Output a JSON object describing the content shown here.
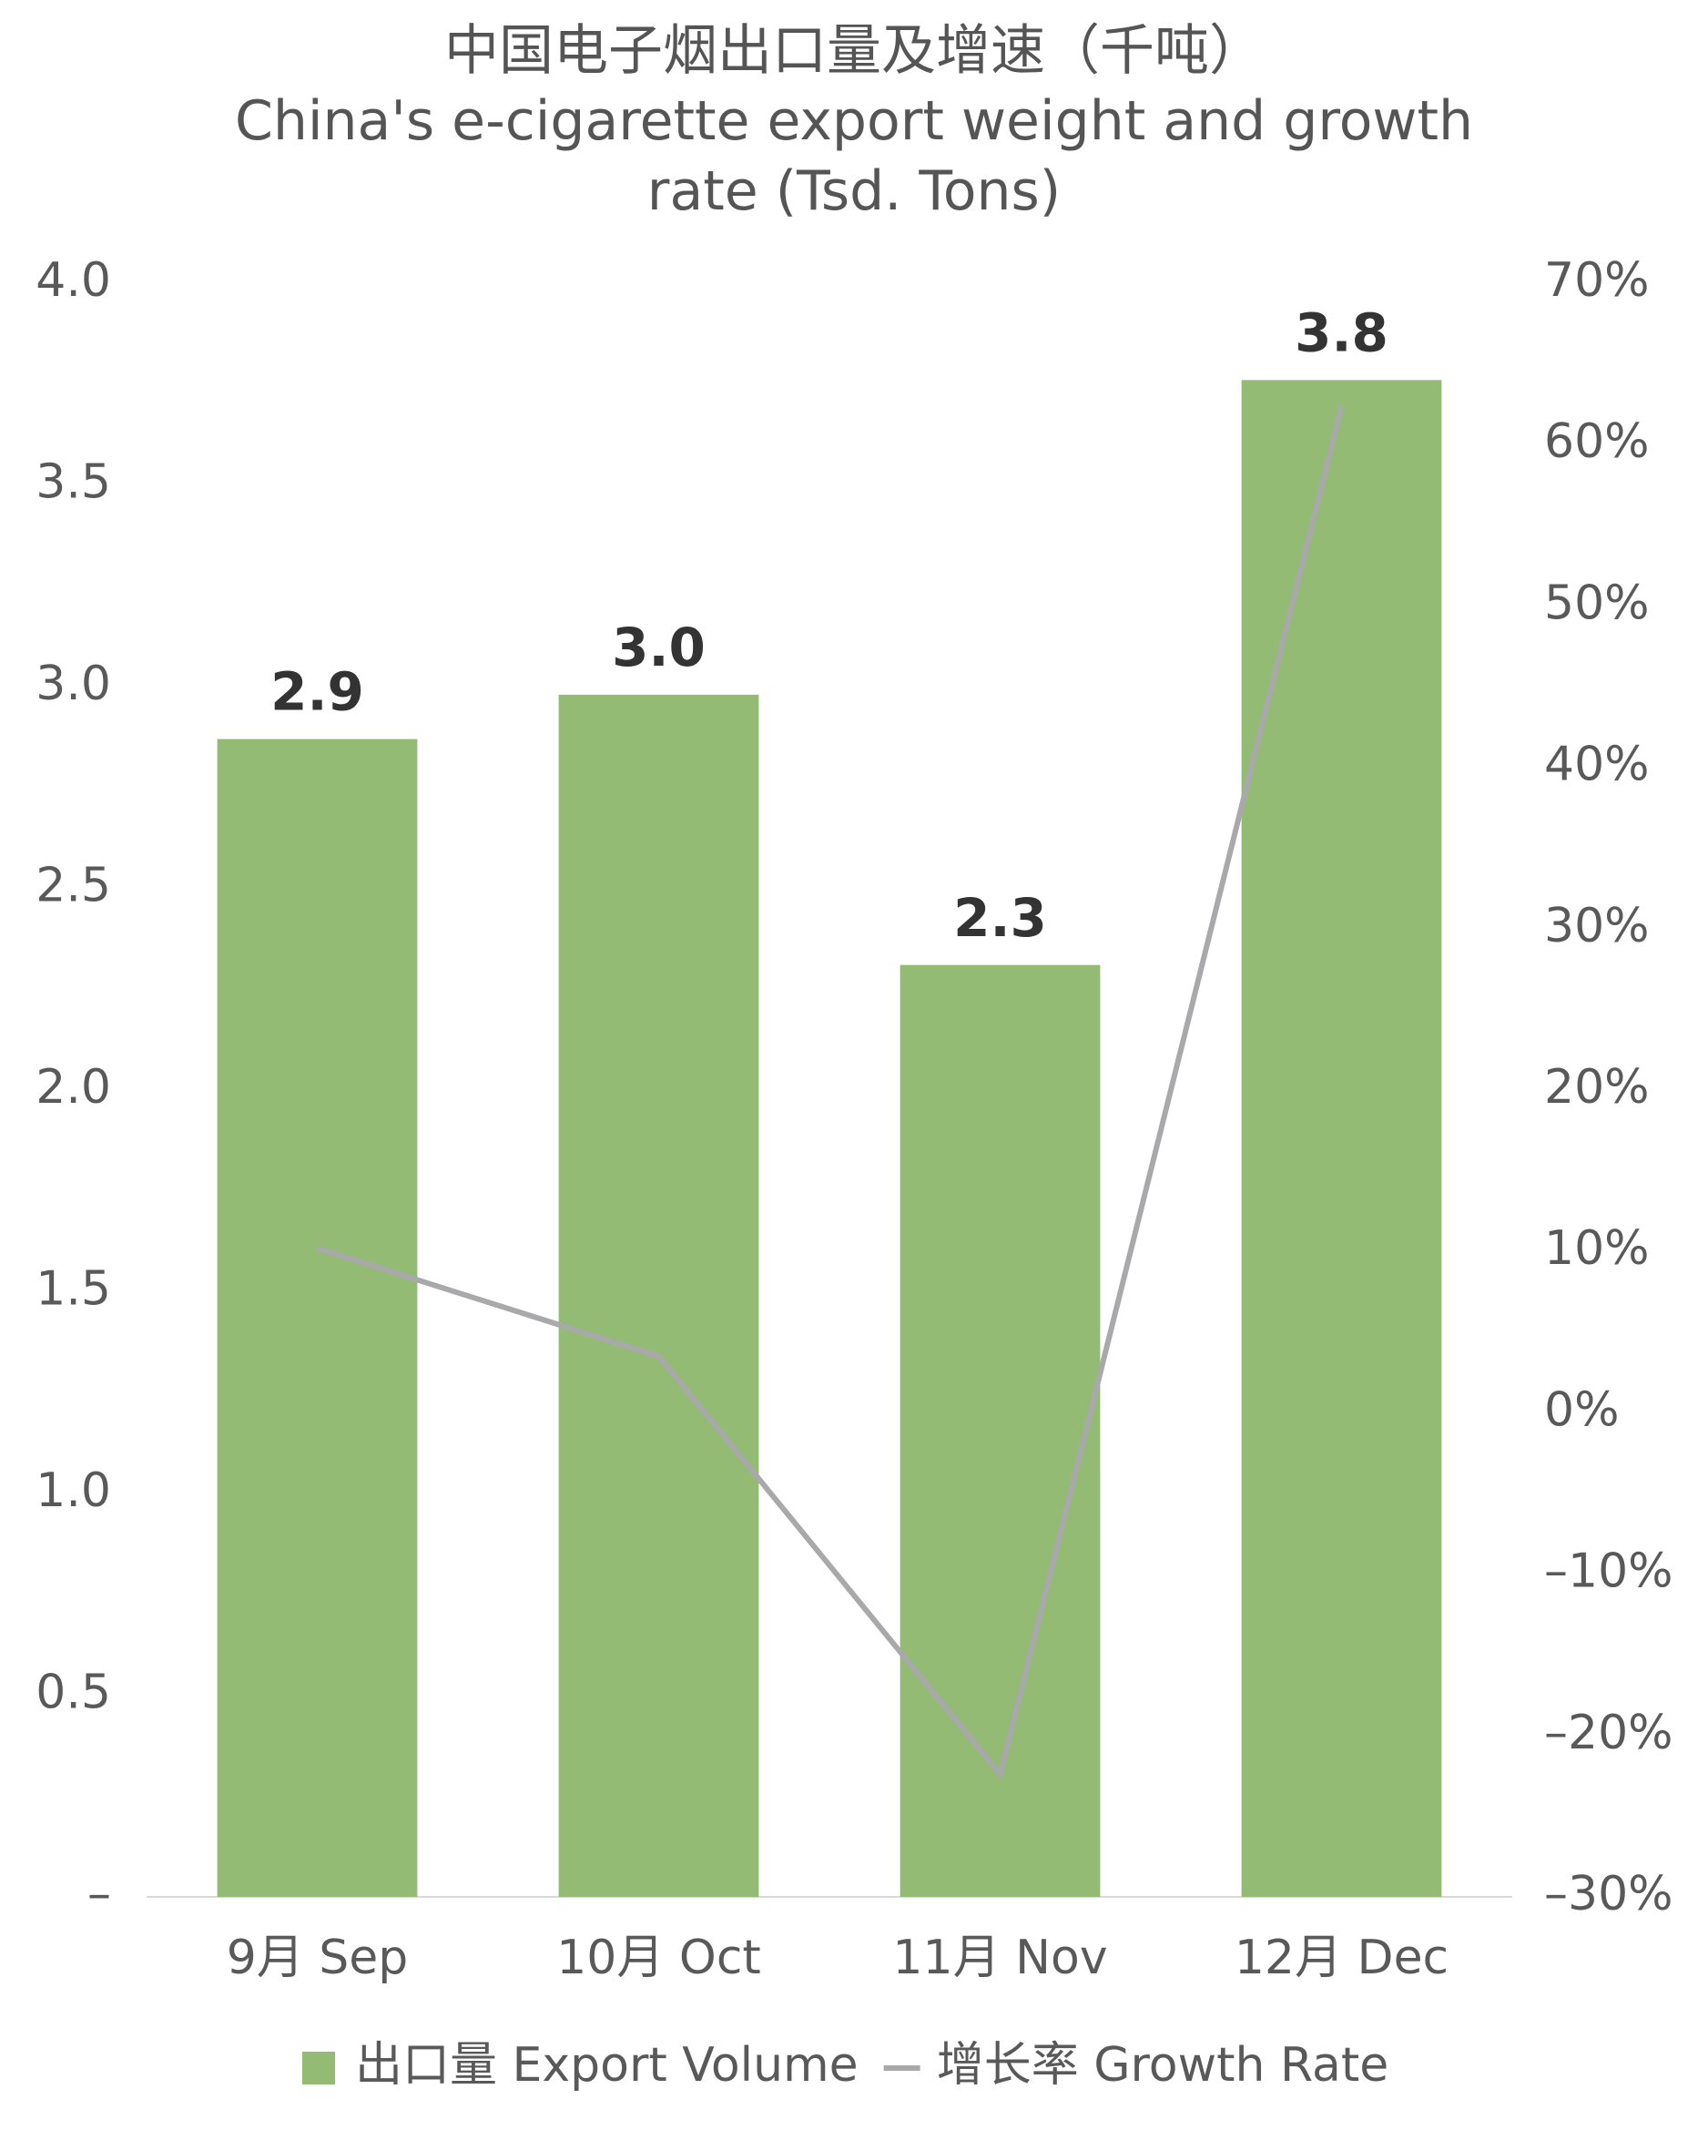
{
  "chart_data": {
    "type": "bar",
    "title": "中国电子烟出口量及增速（千吨）",
    "subtitle": "China's e-cigarette export weight and growth rate (Tsd. Tons)",
    "categories": [
      "9月 Sep",
      "10月 Oct",
      "11月 Nov",
      "12月 Dec"
    ],
    "series": [
      {
        "name": "出口量 Export Volume",
        "type": "bar",
        "color": "#93bb73",
        "values": [
          2.87,
          2.98,
          2.31,
          3.76
        ],
        "value_labels": [
          "2.9",
          "3.0",
          "2.3",
          "3.8"
        ]
      },
      {
        "name": "增长率 Growth Rate",
        "type": "line",
        "axis": "y2",
        "color": "#a9a9ab",
        "values": [
          10.2,
          3.5,
          -22.4,
          62.4
        ]
      }
    ],
    "ylim": [
      0,
      4
    ],
    "yticks": [
      {
        "value": 0,
        "label": "–"
      },
      0.5,
      {
        "value": 1,
        "label": "1.0"
      },
      1.5,
      {
        "value": 2,
        "label": "2.0"
      },
      2.5,
      {
        "value": 3,
        "label": "3.0"
      },
      3.5,
      {
        "value": 4,
        "label": "4.0"
      }
    ],
    "y2lim": [
      -30,
      70
    ],
    "y2ticks": [
      {
        "value": -30,
        "label": "–30%"
      },
      {
        "value": -20,
        "label": "–20%"
      },
      {
        "value": -10,
        "label": "–10%"
      },
      {
        "value": 0,
        "label": "0%"
      },
      {
        "value": 10,
        "label": "10%"
      },
      {
        "value": 20,
        "label": "20%"
      },
      {
        "value": 30,
        "label": "30%"
      },
      {
        "value": 40,
        "label": "40%"
      },
      {
        "value": 50,
        "label": "50%"
      },
      {
        "value": 60,
        "label": "60%"
      },
      {
        "value": 70,
        "label": "70%"
      }
    ],
    "grid": false,
    "legend": "bottom"
  }
}
